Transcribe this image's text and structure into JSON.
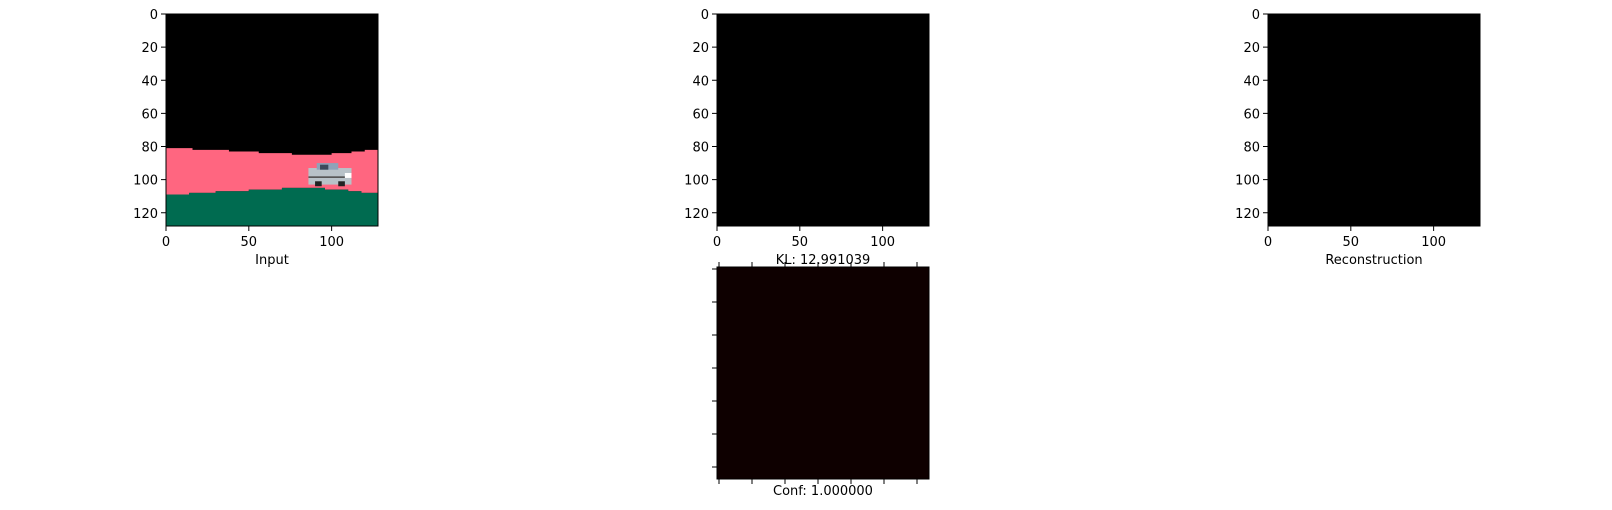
{
  "chart_data": [
    {
      "type": "heatmap",
      "panel": "input",
      "xlabel": "Input",
      "xlim": [
        0,
        128
      ],
      "ylim": [
        128,
        0
      ],
      "x_ticks": [
        "0",
        "50",
        "100"
      ],
      "y_ticks": [
        "0",
        "20",
        "40",
        "60",
        "80",
        "100",
        "120"
      ],
      "content": "road scene: black sky, pink band, green ground, car sprite",
      "colors": {
        "sky": "#000000",
        "road": "#ff6680",
        "ground": "#006b50",
        "car": "#b8c2c8"
      }
    },
    {
      "type": "heatmap",
      "panel": "kl",
      "xlabel": "KL: 12.991039",
      "xlim": [
        0,
        128
      ],
      "ylim": [
        128,
        0
      ],
      "x_ticks": [
        "0",
        "50",
        "100"
      ],
      "y_ticks": [
        "0",
        "20",
        "40",
        "60",
        "80",
        "100",
        "120"
      ],
      "content": "uniform black image",
      "colors": {
        "fill": "#000000"
      }
    },
    {
      "type": "heatmap",
      "panel": "reconstruction",
      "xlabel": "Reconstruction",
      "xlim": [
        0,
        128
      ],
      "ylim": [
        128,
        0
      ],
      "x_ticks": [
        "0",
        "50",
        "100"
      ],
      "y_ticks": [
        "0",
        "20",
        "40",
        "60",
        "80",
        "100",
        "120"
      ],
      "content": "uniform black image",
      "colors": {
        "fill": "#000000"
      }
    },
    {
      "type": "heatmap",
      "panel": "confidence",
      "xlabel": "Conf: 1.000000",
      "x_ticks": [],
      "y_ticks": [],
      "content": "uniform very dark red image",
      "colors": {
        "fill": "#0e0000"
      }
    }
  ]
}
